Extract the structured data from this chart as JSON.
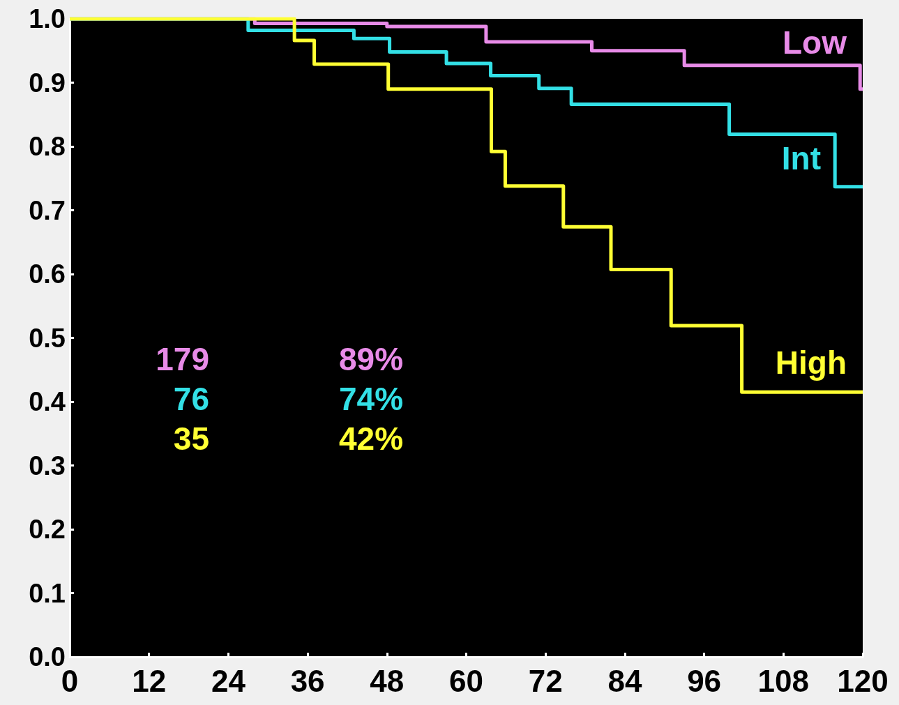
{
  "chart_data": {
    "type": "step",
    "series": [
      {
        "name": "Low",
        "color": "#e88be8",
        "x": [
          0,
          28,
          48,
          63,
          79,
          93,
          119.6,
          120
        ],
        "values": [
          1.0,
          0.993,
          0.988,
          0.964,
          0.95,
          0.927,
          0.89,
          0.89
        ]
      },
      {
        "name": "Int",
        "color": "#33e0e6",
        "x": [
          0,
          27,
          43,
          48.4,
          57,
          63.7,
          71,
          75.9,
          99.8,
          115.8,
          120
        ],
        "values": [
          1.0,
          0.982,
          0.969,
          0.948,
          0.93,
          0.911,
          0.891,
          0.866,
          0.819,
          0.737,
          0.737
        ]
      },
      {
        "name": "High",
        "color": "#ffff33",
        "x": [
          0,
          34,
          37,
          48.2,
          63.8,
          65.9,
          74.7,
          81.9,
          91,
          101.7,
          120
        ],
        "values": [
          1.0,
          0.966,
          0.929,
          0.89,
          0.792,
          0.738,
          0.674,
          0.607,
          0.519,
          0.415,
          0.415
        ]
      }
    ],
    "xlim": [
      0,
      120
    ],
    "xticks": [
      0,
      12,
      24,
      36,
      48,
      60,
      72,
      84,
      96,
      108,
      120
    ],
    "ylim": [
      0,
      1
    ],
    "yticks": [
      {
        "value": 0,
        "label": "0.0"
      },
      {
        "value": 0.1,
        "label": "0.1"
      },
      {
        "value": 0.2,
        "label": "0.2"
      },
      {
        "value": 0.3,
        "label": "0.3"
      },
      {
        "value": 0.4,
        "label": "0.4"
      },
      {
        "value": 0.5,
        "label": "0.5"
      },
      {
        "value": 0.6,
        "label": "0.6"
      },
      {
        "value": 0.7,
        "label": "0.7"
      },
      {
        "value": 0.8,
        "label": "0.8"
      },
      {
        "value": 0.9,
        "label": "0.9"
      },
      {
        "value": 1,
        "label": "1.0"
      }
    ],
    "annotations": [
      "179",
      "76",
      "35",
      "89%",
      "74%",
      "42%"
    ],
    "grid": false,
    "legend": false,
    "marker": "none",
    "line_style": "solid"
  }
}
